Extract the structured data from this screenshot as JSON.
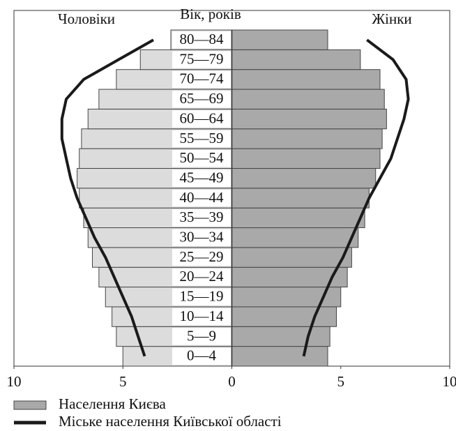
{
  "chart_data": {
    "type": "pyramid",
    "left_label": "Чоловіки",
    "right_label": "Жінки",
    "y_axis_label": "Вік, років",
    "categories": [
      "0—4",
      "5—9",
      "10—14",
      "15—19",
      "20—24",
      "25—29",
      "30—34",
      "35—39",
      "40—44",
      "45—49",
      "50—54",
      "55—59",
      "60—64",
      "65—69",
      "70—74",
      "75—79",
      "80—84"
    ],
    "xlim": [
      -10,
      10
    ],
    "xticks": [
      {
        "value": -10,
        "label": "10"
      },
      {
        "value": -5,
        "label": "5"
      },
      0,
      5,
      10
    ],
    "series": [
      {
        "name": "Населення Києва",
        "kind": "bar",
        "male_color": "#dcdcdc",
        "female_color": "#a9a9a9",
        "male": [
          5.0,
          5.3,
          5.5,
          5.8,
          6.1,
          6.4,
          6.6,
          6.8,
          7.0,
          7.1,
          7.0,
          6.9,
          6.6,
          6.1,
          5.3,
          4.2,
          2.8
        ],
        "female": [
          4.4,
          4.5,
          4.8,
          5.0,
          5.3,
          5.5,
          5.8,
          6.1,
          6.3,
          6.6,
          6.8,
          6.9,
          7.1,
          7.0,
          6.8,
          5.9,
          4.4
        ]
      },
      {
        "name": "Міське населення Київської області",
        "kind": "line",
        "color": "#1a1a1a",
        "male": [
          4.0,
          4.3,
          4.6,
          5.0,
          5.4,
          5.8,
          6.3,
          6.7,
          7.1,
          7.4,
          7.6,
          7.8,
          7.8,
          7.6,
          6.8,
          5.2,
          3.6
        ],
        "female": [
          3.3,
          3.5,
          3.8,
          4.2,
          4.6,
          5.1,
          5.5,
          5.9,
          6.3,
          6.8,
          7.3,
          7.6,
          7.9,
          8.1,
          8.0,
          7.4,
          6.2
        ]
      }
    ]
  }
}
